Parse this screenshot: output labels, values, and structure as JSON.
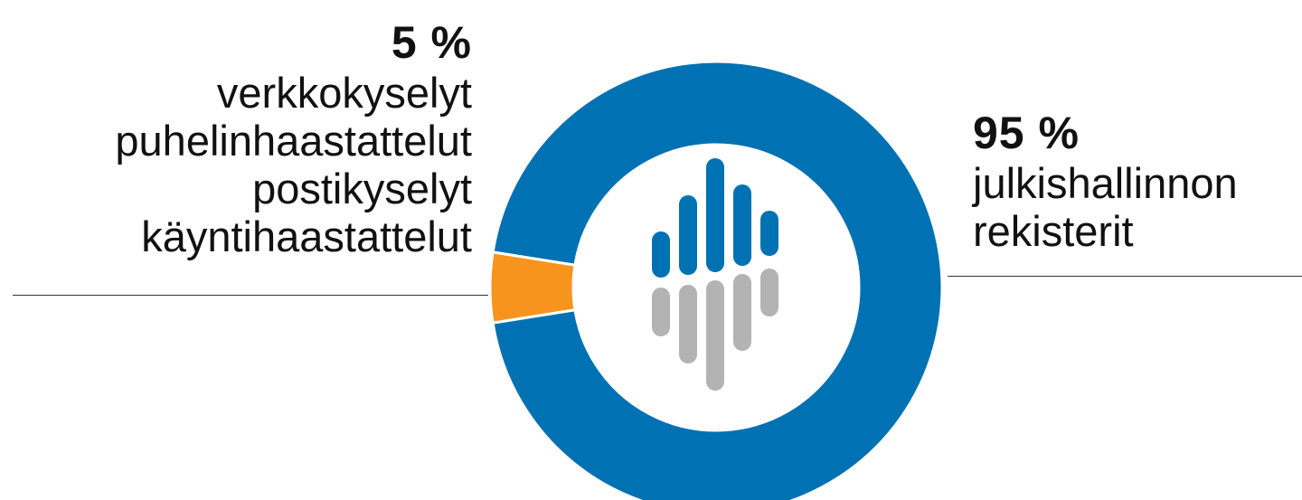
{
  "chart_data": {
    "type": "pie",
    "style": "donut",
    "slices": [
      {
        "value": 95,
        "percent_label": "95 %",
        "label_lines": [
          "julkishallinnon",
          "rekisterit"
        ],
        "color": "#0071b2",
        "label_side": "right"
      },
      {
        "value": 5,
        "percent_label": "5 %",
        "label_lines": [
          "verkkokyselyt",
          "puhelinhaastattelut",
          "postikyselyt",
          "käyntihaastattelut"
        ],
        "color": "#f7941d",
        "label_side": "left"
      }
    ],
    "center_logo": {
      "icon": "bar-hand-logo",
      "colors": [
        "#0071b2",
        "#b3b3b3"
      ]
    }
  }
}
